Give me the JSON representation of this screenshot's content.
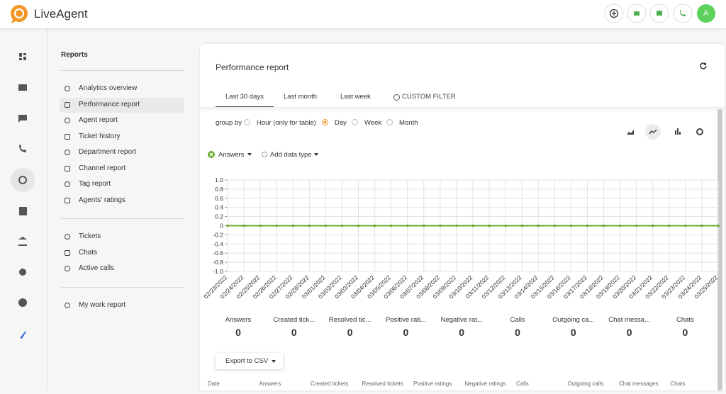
{
  "header": {
    "brand": "LiveAgent",
    "user_initial": "A"
  },
  "menu": {
    "title": "Reports",
    "groups": [
      [
        "Analytics overview",
        "Performance report",
        "Agent report",
        "Ticket history",
        "Department report",
        "Channel report",
        "Tag report",
        "Agents' ratings"
      ],
      [
        "Tickets",
        "Chats",
        "Active calls"
      ],
      [
        "My work report"
      ]
    ]
  },
  "report": {
    "title": "Performance report",
    "tabs": [
      "Last 30 days",
      "Last month",
      "Last week",
      "CUSTOM FILTER"
    ],
    "group_by_label": "group by",
    "group_by_options": [
      "Hour (only for table)",
      "Day",
      "Week",
      "Month"
    ],
    "add_data_type": "Add data type",
    "stats": [
      {
        "label": "Answers",
        "value": 0
      },
      {
        "label": "Created tick...",
        "value": 0
      },
      {
        "label": "Resolved tic...",
        "value": 0
      },
      {
        "label": "Positive rati...",
        "value": 0
      },
      {
        "label": "Negative rat...",
        "value": 0
      },
      {
        "label": "Calls",
        "value": 0
      },
      {
        "label": "Outgoing ca...",
        "value": 0
      },
      {
        "label": "Chat messa...",
        "value": 0
      },
      {
        "label": "Chats",
        "value": 0
      }
    ],
    "export_button": "Export to CSV",
    "table_columns": [
      "Date",
      "Answers",
      "Created tickets",
      "Resolved tickets",
      "Positive ratings",
      "Negative ratings",
      "Calls",
      "Outgoing calls",
      "Chat messages",
      "Chats"
    ]
  },
  "chart_data": {
    "type": "line",
    "x": [
      "02/23/2022",
      "02/24/2022",
      "02/25/2022",
      "02/26/2022",
      "02/27/2022",
      "02/28/2022",
      "03/01/2022",
      "03/02/2022",
      "03/03/2022",
      "03/04/2022",
      "03/05/2022",
      "03/06/2022",
      "03/07/2022",
      "03/08/2022",
      "03/09/2022",
      "03/10/2022",
      "03/11/2022",
      "03/12/2022",
      "03/13/2022",
      "03/14/2022",
      "03/15/2022",
      "03/16/2022",
      "03/17/2022",
      "03/18/2022",
      "03/19/2022",
      "03/20/2022",
      "03/21/2022",
      "03/22/2022",
      "03/23/2022",
      "03/24/2022",
      "03/25/2022"
    ],
    "series": [
      {
        "name": "Answers",
        "color": "#6aab2e",
        "values": [
          0,
          0,
          0,
          0,
          0,
          0,
          0,
          0,
          0,
          0,
          0,
          0,
          0,
          0,
          0,
          0,
          0,
          0,
          0,
          0,
          0,
          0,
          0,
          0,
          0,
          0,
          0,
          0,
          0,
          0,
          0
        ]
      }
    ],
    "ylim": [
      -1,
      1
    ],
    "yticks": [
      {
        "value": 1,
        "label": "1.0"
      },
      {
        "value": 0.8,
        "label": "0.8"
      },
      {
        "value": 0.6,
        "label": "0.6"
      },
      {
        "value": 0.4,
        "label": "0.4"
      },
      {
        "value": 0.2,
        "label": "0.2"
      },
      0,
      {
        "value": -0.2,
        "label": "-0.2"
      },
      {
        "value": -0.4,
        "label": "-0.4"
      },
      {
        "value": -0.6,
        "label": "-0.6"
      },
      {
        "value": -0.8,
        "label": "-0.8"
      },
      {
        "value": -1,
        "label": "-1.0"
      }
    ],
    "grid": true
  }
}
